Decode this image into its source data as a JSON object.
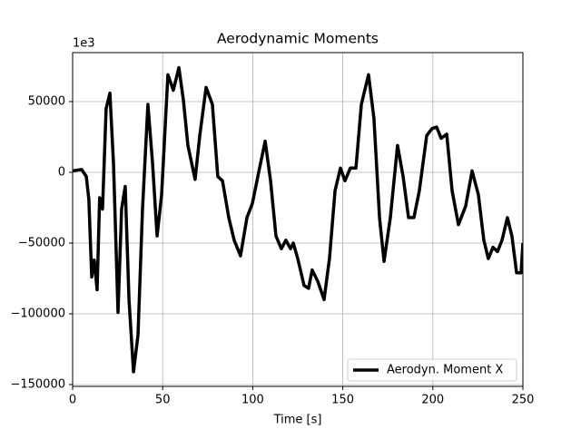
{
  "chart_data": {
    "type": "line",
    "title": "Aerodynamic Moments",
    "x_label": "Time [s]",
    "offset_text": "1e3",
    "x": [
      0,
      5,
      7.6,
      9,
      10.6,
      12,
      13.6,
      15,
      16.6,
      18.6,
      20.7,
      22.7,
      25.2,
      27.2,
      29.2,
      31.3,
      33.8,
      36.3,
      38.8,
      41.8,
      44.4,
      46.9,
      49.4,
      52.9,
      55.9,
      59,
      61.5,
      64,
      68,
      70.6,
      74.1,
      77.6,
      80.6,
      83.2,
      86.7,
      89.7,
      93.2,
      96.8,
      99.8,
      103.3,
      106.9,
      109.9,
      112.9,
      115.9,
      118.4,
      121,
      122.5,
      125,
      128.5,
      131,
      133,
      136.1,
      139.6,
      142.6,
      145.7,
      148.7,
      151.2,
      154.2,
      157.3,
      160.3,
      164.3,
      167.3,
      170.4,
      172.9,
      176.4,
      180.4,
      183.5,
      186.5,
      189.5,
      192.5,
      196.6,
      199.6,
      202.1,
      204.6,
      207.7,
      210.7,
      214.2,
      218.2,
      221.8,
      225.3,
      228.3,
      230.8,
      233.4,
      235.9,
      238.4,
      241.4,
      243.9,
      246.5,
      249,
      250
    ],
    "series": [
      {
        "name": "Aerodyn. Moment X",
        "color": "#000000",
        "values": [
          1000,
          2000,
          -3000,
          -19000,
          -74000,
          -62000,
          -83000,
          -18000,
          -26000,
          45000,
          56000,
          6000,
          -99000,
          -26000,
          -10000,
          -90000,
          -141000,
          -115000,
          -26000,
          48000,
          6000,
          -45000,
          -16000,
          69000,
          58000,
          74000,
          51000,
          19000,
          -5000,
          26000,
          60000,
          48000,
          -3000,
          -6000,
          -32000,
          -48000,
          -59000,
          -32000,
          -22000,
          0,
          22000,
          -6000,
          -45000,
          -54000,
          -48000,
          -54000,
          -50000,
          -61000,
          -80000,
          -82000,
          -69000,
          -77000,
          -90000,
          -61000,
          -13000,
          3000,
          -6000,
          3000,
          3000,
          48000,
          69000,
          38000,
          -32000,
          -63000,
          -32000,
          19000,
          -3000,
          -32000,
          -32000,
          -13000,
          26000,
          31000,
          32000,
          24000,
          27000,
          -13000,
          -37000,
          -24000,
          1000,
          -16000,
          -48000,
          -61000,
          -53000,
          -56000,
          -48000,
          -32000,
          -45000,
          -71000,
          -71000,
          -50000
        ]
      }
    ],
    "xlim": [
      0,
      250
    ],
    "xticks": [
      0,
      50,
      100,
      150,
      200,
      250
    ],
    "ylim": [
      -151300,
      84600
    ],
    "yticks": [
      {
        "value": -150000,
        "label": "−150000"
      },
      {
        "value": -100000,
        "label": "−100000"
      },
      {
        "value": -50000,
        "label": "−50000"
      },
      0,
      50000
    ],
    "grid": true,
    "legend": "lower right"
  }
}
